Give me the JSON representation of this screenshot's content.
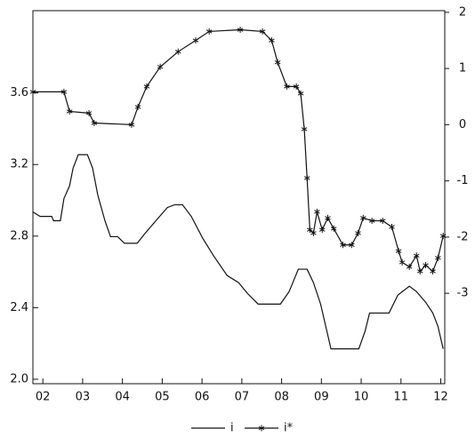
{
  "chart_data": {
    "type": "line",
    "xlim": [
      2001.75,
      2012.1
    ],
    "xticks": [
      {
        "value": 2002,
        "label": "02"
      },
      {
        "value": 2003,
        "label": "03"
      },
      {
        "value": 2004,
        "label": "04"
      },
      {
        "value": 2005,
        "label": "05"
      },
      {
        "value": 2006,
        "label": "06"
      },
      {
        "value": 2007,
        "label": "07"
      },
      {
        "value": 2008,
        "label": "08"
      },
      {
        "value": 2009,
        "label": "09"
      },
      {
        "value": 2010,
        "label": "10"
      },
      {
        "value": 2011,
        "label": "11"
      },
      {
        "value": 2012,
        "label": "12"
      }
    ],
    "ylim": [
      1.975,
      4.06
    ],
    "yticks": [
      {
        "value": 2,
        "label": "2.0"
      },
      2.4,
      2.8,
      3.2,
      3.6
    ],
    "y2lim": [
      -4.61,
      2.03
    ],
    "y2ticks": [
      2,
      1,
      0,
      -1,
      -2,
      -3
    ],
    "grid": false,
    "legend": "bottom",
    "series": [
      {
        "name": "i",
        "color": "#111111",
        "marker": "none",
        "x": [
          2001.75,
          2001.93,
          2002.22,
          2002.27,
          2002.44,
          2002.53,
          2002.67,
          2002.76,
          2002.89,
          2003.12,
          2003.25,
          2003.38,
          2003.56,
          2003.7,
          2003.88,
          2004.05,
          2004.37,
          2004.55,
          2004.84,
          2005.13,
          2005.31,
          2005.51,
          2005.73,
          2006.02,
          2006.29,
          2006.63,
          2006.92,
          2007.14,
          2007.41,
          2007.97,
          2008.19,
          2008.42,
          2008.64,
          2008.8,
          2008.98,
          2009.11,
          2009.24,
          2009.94,
          2010.1,
          2010.21,
          2010.7,
          2010.92,
          2011.21,
          2011.39,
          2011.62,
          2011.8,
          2011.93,
          2012.06
        ],
        "values": [
          2.935,
          2.91,
          2.91,
          2.886,
          2.886,
          3.01,
          3.08,
          3.18,
          3.255,
          3.255,
          3.18,
          3.03,
          2.886,
          2.797,
          2.797,
          2.76,
          2.76,
          2.81,
          2.886,
          2.96,
          2.975,
          2.975,
          2.91,
          2.787,
          2.69,
          2.58,
          2.54,
          2.48,
          2.42,
          2.42,
          2.49,
          2.615,
          2.615,
          2.54,
          2.42,
          2.295,
          2.17,
          2.17,
          2.27,
          2.37,
          2.37,
          2.47,
          2.52,
          2.49,
          2.43,
          2.37,
          2.295,
          2.17
        ]
      },
      {
        "name": "i*",
        "color": "#111111",
        "marker": "star",
        "axis": "y2",
        "x": [
          2001.75,
          2002.53,
          2002.67,
          2003.16,
          2003.29,
          2004.23,
          2004.39,
          2004.61,
          2004.95,
          2005.4,
          2005.84,
          2006.18,
          2006.96,
          2007.52,
          2007.75,
          2007.9,
          2008.13,
          2008.37,
          2008.48,
          2008.57,
          2008.64,
          2008.71,
          2008.8,
          2008.89,
          2009.02,
          2009.16,
          2009.31,
          2009.54,
          2009.76,
          2009.92,
          2010.05,
          2010.27,
          2010.54,
          2010.77,
          2010.94,
          2011.03,
          2011.21,
          2011.39,
          2011.48,
          2011.62,
          2011.8,
          2011.93,
          2012.06
        ],
        "values": [
          0.585,
          0.585,
          0.237,
          0.206,
          0.03,
          0,
          0.316,
          0.68,
          1.03,
          1.3,
          1.5,
          1.66,
          1.69,
          1.66,
          1.5,
          1.11,
          0.68,
          0.68,
          0.554,
          -0.08,
          -0.95,
          -1.87,
          -1.93,
          -1.55,
          -1.87,
          -1.66,
          -1.85,
          -2.14,
          -2.14,
          -1.93,
          -1.66,
          -1.71,
          -1.71,
          -1.82,
          -2.25,
          -2.45,
          -2.53,
          -2.33,
          -2.61,
          -2.5,
          -2.61,
          -2.37,
          -1.98
        ]
      }
    ]
  }
}
